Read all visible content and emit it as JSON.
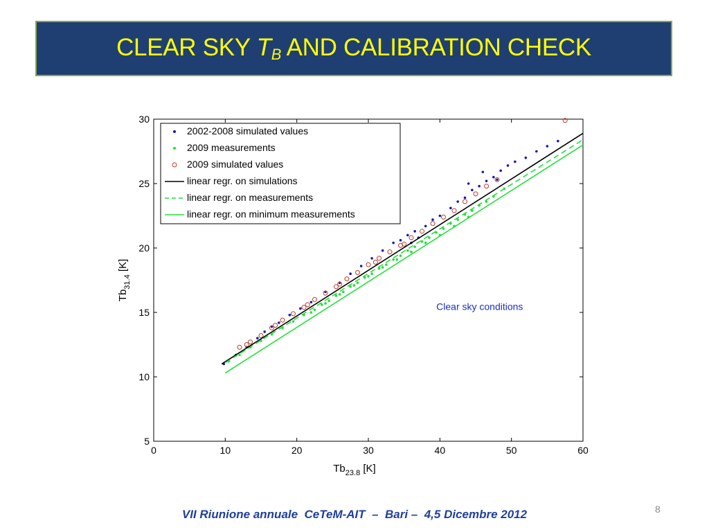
{
  "slide": {
    "title_main": "CLEAR SKY ",
    "title_symbol": "T",
    "title_subscript": "B",
    "title_rest": " AND CALIBRATION CHECK",
    "page_number": "8",
    "footer": "VII Riunione annuale  CeTeM-AIT  –  Bari –  4,5 Dicembre 2012",
    "colors": {
      "title_bg": "#1f3f72",
      "title_text": "#ffff00",
      "title_border": "#8aa64a",
      "footer_text": "#1f3f9a"
    }
  },
  "chart_data": {
    "type": "scatter",
    "xlabel_main": "Tb",
    "xlabel_sub": "23.8",
    "xlabel_unit": " [K]",
    "ylabel_main": "Tb",
    "ylabel_sub": "31.4",
    "ylabel_unit": " [K]",
    "xlim": [
      0,
      60
    ],
    "ylim": [
      5,
      30
    ],
    "xticks": [
      "0",
      "10",
      "20",
      "30",
      "40",
      "50",
      "60"
    ],
    "yticks": [
      "5",
      "10",
      "15",
      "20",
      "25",
      "30"
    ],
    "annotation": "Clear sky conditions",
    "legend": {
      "position": "top-left",
      "entries": [
        {
          "label": "2002-2008 simulated values",
          "marker": "dot",
          "color": "#1a1aa8"
        },
        {
          "label": "2009 measurements",
          "marker": "dot",
          "color": "#22e03a"
        },
        {
          "label": "2009 simulated values",
          "marker": "circle",
          "color": "#c0392b"
        },
        {
          "label": "linear regr. on simulations",
          "marker": "solid-line",
          "color": "#000000"
        },
        {
          "label": "linear regr. on measurements",
          "marker": "dashed-line",
          "color": "#22e03a"
        },
        {
          "label": "linear regr. on minimum measurements",
          "marker": "solid-line",
          "color": "#22e03a"
        }
      ]
    },
    "regression_lines": [
      {
        "name": "linear regr. on simulations",
        "x": [
          9.5,
          60
        ],
        "y": [
          11.0,
          28.9
        ],
        "color": "#000000",
        "dash": false
      },
      {
        "name": "linear regr. on measurements",
        "x": [
          10,
          60
        ],
        "y": [
          11.1,
          28.4
        ],
        "color": "#22e03a",
        "dash": true
      },
      {
        "name": "linear regr. on minimum measurements",
        "x": [
          10,
          60
        ],
        "y": [
          10.3,
          28.0
        ],
        "color": "#22e03a",
        "dash": false
      }
    ],
    "series": [
      {
        "name": "2002-2008 simulated values",
        "marker": "dot",
        "color": "#1a1aa8",
        "x": [
          9.8,
          11.5,
          13.0,
          14.5,
          15.5,
          16.5,
          17.5,
          19.0,
          20.5,
          22.0,
          24.0,
          26.0,
          27.5,
          29.0,
          30.5,
          32.0,
          33.5,
          34.5,
          35.5,
          36.5,
          38.0,
          39.0,
          40.0,
          41.5,
          42.5,
          43.5,
          44.5,
          45.5,
          46.5,
          47.5,
          48.5,
          49.5,
          50.5,
          52.0,
          53.5,
          55.0,
          56.5,
          44.0,
          37.0,
          36.0,
          46.0,
          48.0
        ],
        "y": [
          11.0,
          11.7,
          12.3,
          13.0,
          13.5,
          13.9,
          14.2,
          14.8,
          15.3,
          15.8,
          16.6,
          17.3,
          18.0,
          18.6,
          19.2,
          19.8,
          20.4,
          20.6,
          21.0,
          21.3,
          21.7,
          22.2,
          22.5,
          23.1,
          23.6,
          23.9,
          24.5,
          24.8,
          25.2,
          25.5,
          26.0,
          26.4,
          26.7,
          27.0,
          27.5,
          27.9,
          28.3,
          25.0,
          20.8,
          20.4,
          25.9,
          25.3
        ]
      },
      {
        "name": "2009 measurements",
        "marker": "dot",
        "color": "#22e03a",
        "x": [
          10.5,
          12.0,
          13.5,
          15.0,
          16.5,
          18.0,
          19.5,
          21.0,
          22.5,
          23.5,
          24.5,
          25.5,
          26.5,
          27.5,
          28.5,
          29.5,
          30.5,
          31.5,
          32.5,
          33.5,
          34.5,
          35.5,
          36.5,
          37.5,
          38.5,
          39.5,
          40.5,
          41.5,
          42.5,
          43.5,
          44.5,
          45.5,
          46.5,
          47.5,
          49.0,
          22.0,
          24.0,
          26.0,
          28.0,
          30.0,
          32.0,
          34.0,
          36.0,
          38.0,
          40.0,
          42.0,
          44.0
        ],
        "y": [
          11.2,
          11.7,
          12.3,
          12.8,
          13.3,
          13.8,
          14.3,
          14.8,
          15.2,
          15.6,
          15.9,
          16.3,
          16.6,
          17.0,
          17.3,
          17.7,
          18.0,
          18.4,
          18.7,
          19.1,
          19.4,
          19.8,
          20.1,
          20.5,
          20.8,
          21.2,
          21.5,
          21.9,
          22.2,
          22.6,
          22.9,
          23.3,
          23.6,
          24.0,
          24.6,
          15.0,
          15.7,
          16.4,
          17.1,
          17.8,
          18.5,
          19.1,
          19.7,
          20.4,
          21.0,
          21.7,
          22.4
        ]
      },
      {
        "name": "2009 simulated values",
        "marker": "circle",
        "color": "#c0392b",
        "x": [
          12.0,
          13.5,
          15.0,
          16.5,
          18.0,
          19.5,
          21.0,
          22.5,
          24.0,
          25.5,
          27.0,
          28.5,
          30.0,
          31.5,
          33.0,
          34.5,
          36.0,
          37.5,
          39.0,
          40.5,
          42.0,
          43.5,
          45.0,
          46.5,
          48.0,
          57.5,
          13.0,
          17.0,
          21.5,
          26.0,
          31.0,
          35.0
        ],
        "y": [
          12.3,
          12.7,
          13.2,
          13.8,
          14.4,
          14.9,
          15.4,
          16.0,
          16.5,
          17.0,
          17.6,
          18.1,
          18.7,
          19.2,
          19.7,
          20.2,
          20.8,
          21.3,
          21.9,
          22.4,
          22.9,
          23.6,
          24.2,
          24.8,
          25.3,
          29.9,
          12.5,
          14.0,
          15.6,
          17.2,
          18.9,
          20.3
        ]
      }
    ]
  }
}
